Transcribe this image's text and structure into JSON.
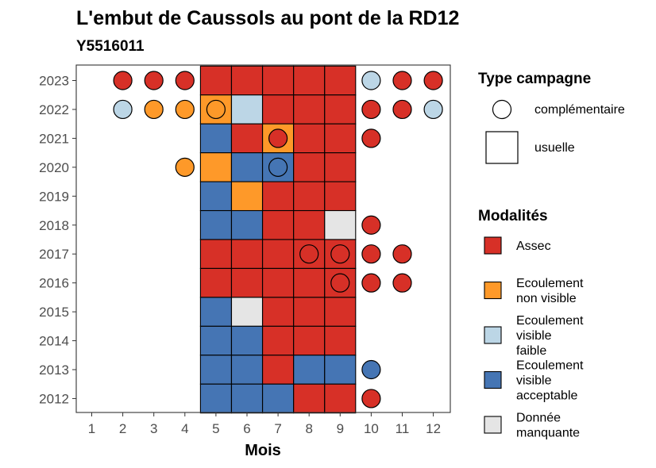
{
  "chart_data": {
    "type": "heatmap",
    "title": "L'embut de Caussols au pont de la RD12",
    "subtitle": "Y5516011",
    "xlabel": "Mois",
    "ylabel": "",
    "x_categories": [
      "1",
      "2",
      "3",
      "4",
      "5",
      "6",
      "7",
      "8",
      "9",
      "10",
      "11",
      "12"
    ],
    "y_categories": [
      "2023",
      "2022",
      "2021",
      "2020",
      "2019",
      "2018",
      "2017",
      "2016",
      "2015",
      "2014",
      "2013",
      "2012"
    ],
    "colors": {
      "Assec": "#d73027",
      "Ecoulement non visible": "#fe9929",
      "Ecoulement visible faible": "#bcd6e6",
      "Ecoulement visible acceptable": "#4575b4",
      "Donnée manquante": "#e5e5e5"
    },
    "legend_campaign": {
      "title": "Type campagne",
      "items": [
        {
          "key": "complementaire",
          "label": "complémentaire",
          "shape": "circle"
        },
        {
          "key": "usuelle",
          "label": "usuelle",
          "shape": "square"
        }
      ]
    },
    "legend_modalites": {
      "title": "Modalités",
      "items": [
        {
          "key": "Assec",
          "lines": [
            "Assec"
          ]
        },
        {
          "key": "Ecoulement non visible",
          "lines": [
            "Ecoulement",
            "non visible"
          ]
        },
        {
          "key": "Ecoulement visible faible",
          "lines": [
            "Ecoulement",
            "visible",
            "faible"
          ]
        },
        {
          "key": "Ecoulement visible acceptable",
          "lines": [
            "Ecoulement",
            "visible",
            "acceptable"
          ]
        },
        {
          "key": "Donnée manquante",
          "lines": [
            "Donnée",
            "manquante"
          ]
        }
      ]
    },
    "usuelle": [
      {
        "year": "2023",
        "values": [
          "Assec",
          "Assec",
          "Assec",
          "Assec",
          "Assec"
        ]
      },
      {
        "year": "2022",
        "values": [
          "Ecoulement non visible",
          "Ecoulement visible faible",
          "Assec",
          "Assec",
          "Assec"
        ]
      },
      {
        "year": "2021",
        "values": [
          "Ecoulement visible acceptable",
          "Assec",
          "Ecoulement non visible",
          "Assec",
          "Assec"
        ]
      },
      {
        "year": "2020",
        "values": [
          "Ecoulement non visible",
          "Ecoulement visible acceptable",
          "Ecoulement visible acceptable",
          "Assec",
          "Assec"
        ]
      },
      {
        "year": "2019",
        "values": [
          "Ecoulement visible acceptable",
          "Ecoulement non visible",
          "Assec",
          "Assec",
          "Assec"
        ]
      },
      {
        "year": "2018",
        "values": [
          "Ecoulement visible acceptable",
          "Ecoulement visible acceptable",
          "Assec",
          "Assec",
          "Donnée manquante"
        ]
      },
      {
        "year": "2017",
        "values": [
          "Assec",
          "Assec",
          "Assec",
          "Assec",
          "Assec"
        ]
      },
      {
        "year": "2016",
        "values": [
          "Assec",
          "Assec",
          "Assec",
          "Assec",
          "Assec"
        ]
      },
      {
        "year": "2015",
        "values": [
          "Ecoulement visible acceptable",
          "Donnée manquante",
          "Assec",
          "Assec",
          "Assec"
        ]
      },
      {
        "year": "2014",
        "values": [
          "Ecoulement visible acceptable",
          "Ecoulement visible acceptable",
          "Assec",
          "Assec",
          "Assec"
        ]
      },
      {
        "year": "2013",
        "values": [
          "Ecoulement visible acceptable",
          "Ecoulement visible acceptable",
          "Assec",
          "Ecoulement visible acceptable",
          "Ecoulement visible acceptable"
        ]
      },
      {
        "year": "2012",
        "values": [
          "Ecoulement visible acceptable",
          "Ecoulement visible acceptable",
          "Ecoulement visible acceptable",
          "Assec",
          "Assec"
        ]
      }
    ],
    "usuelle_months": [
      "5",
      "6",
      "7",
      "8",
      "9"
    ],
    "complementaire": [
      {
        "year": "2023",
        "month": "2",
        "value": "Assec"
      },
      {
        "year": "2023",
        "month": "3",
        "value": "Assec"
      },
      {
        "year": "2023",
        "month": "4",
        "value": "Assec"
      },
      {
        "year": "2023",
        "month": "10",
        "value": "Ecoulement visible faible"
      },
      {
        "year": "2023",
        "month": "11",
        "value": "Assec"
      },
      {
        "year": "2023",
        "month": "12",
        "value": "Assec"
      },
      {
        "year": "2022",
        "month": "2",
        "value": "Ecoulement visible faible"
      },
      {
        "year": "2022",
        "month": "3",
        "value": "Ecoulement non visible"
      },
      {
        "year": "2022",
        "month": "4",
        "value": "Ecoulement non visible"
      },
      {
        "year": "2022",
        "month": "5",
        "value": "Ecoulement non visible"
      },
      {
        "year": "2022",
        "month": "10",
        "value": "Assec"
      },
      {
        "year": "2022",
        "month": "11",
        "value": "Assec"
      },
      {
        "year": "2022",
        "month": "12",
        "value": "Ecoulement visible faible"
      },
      {
        "year": "2021",
        "month": "7",
        "value": "Assec"
      },
      {
        "year": "2021",
        "month": "10",
        "value": "Assec"
      },
      {
        "year": "2020",
        "month": "4",
        "value": "Ecoulement non visible"
      },
      {
        "year": "2020",
        "month": "7",
        "value": "Ecoulement visible acceptable"
      },
      {
        "year": "2018",
        "month": "10",
        "value": "Assec"
      },
      {
        "year": "2017",
        "month": "8",
        "value": "Assec"
      },
      {
        "year": "2017",
        "month": "9",
        "value": "Assec"
      },
      {
        "year": "2017",
        "month": "10",
        "value": "Assec"
      },
      {
        "year": "2017",
        "month": "11",
        "value": "Assec"
      },
      {
        "year": "2016",
        "month": "9",
        "value": "Assec"
      },
      {
        "year": "2016",
        "month": "10",
        "value": "Assec"
      },
      {
        "year": "2016",
        "month": "11",
        "value": "Assec"
      },
      {
        "year": "2013",
        "month": "10",
        "value": "Ecoulement visible acceptable"
      },
      {
        "year": "2012",
        "month": "10",
        "value": "Assec"
      }
    ]
  }
}
